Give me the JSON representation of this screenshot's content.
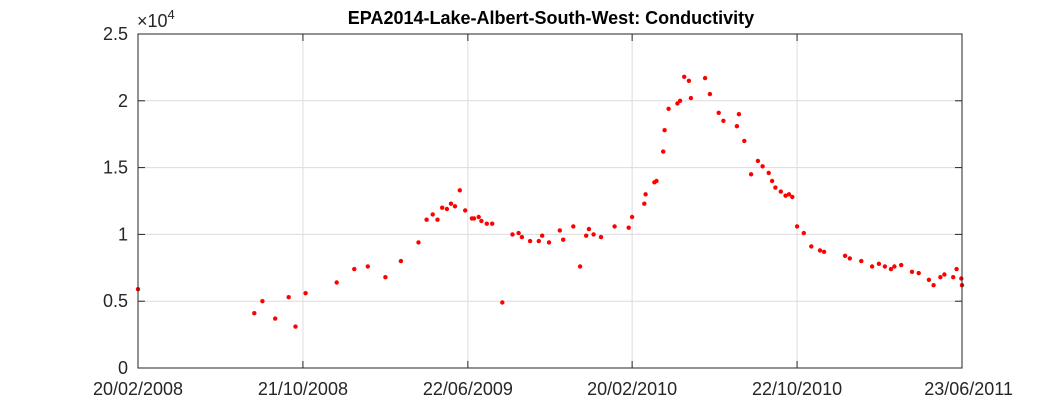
{
  "chart_data": {
    "type": "scatter",
    "title": "EPA2014-Lake-Albert-South-West: Conductivity",
    "xlabel": "",
    "ylabel": "",
    "exponent_label": "×10",
    "exponent_power": "4",
    "x_ticks": [
      "20/02/2008",
      "21/10/2008",
      "22/06/2009",
      "20/02/2010",
      "22/10/2010",
      "23/06/2011"
    ],
    "x_range": [
      "20/02/2008",
      "23/06/2011"
    ],
    "y_ticks": [
      "0",
      "0.5",
      "1",
      "1.5",
      "2",
      "2.5"
    ],
    "y_tick_values": [
      0,
      5000,
      10000,
      15000,
      20000,
      25000
    ],
    "ylim": [
      0,
      25000
    ],
    "grid": true,
    "marker_color": "#ff0000",
    "series": [
      {
        "x": [
          "2008-02-20",
          "2008-08-10",
          "2008-08-22",
          "2008-09-10",
          "2008-09-30",
          "2008-10-10",
          "2008-10-25",
          "2008-12-10",
          "2009-01-05",
          "2009-01-25",
          "2009-02-20",
          "2009-03-15",
          "2009-04-10",
          "2009-04-22",
          "2009-05-01",
          "2009-05-08",
          "2009-05-15",
          "2009-05-22",
          "2009-05-28",
          "2009-06-03",
          "2009-06-10",
          "2009-06-18",
          "2009-06-28",
          "2009-07-01",
          "2009-07-08",
          "2009-07-12",
          "2009-07-20",
          "2009-07-28",
          "2009-08-12",
          "2009-08-27",
          "2009-09-05",
          "2009-09-10",
          "2009-09-22",
          "2009-10-05",
          "2009-10-10",
          "2009-10-20",
          "2009-11-05",
          "2009-11-10",
          "2009-11-25",
          "2009-12-05",
          "2009-12-14",
          "2009-12-18",
          "2009-12-25",
          "2010-01-05",
          "2010-01-25",
          "2010-02-15",
          "2010-02-20",
          "2010-03-10",
          "2010-03-12",
          "2010-03-25",
          "2010-03-28",
          "2010-04-07",
          "2010-04-09",
          "2010-04-15",
          "2010-04-28",
          "2010-05-02",
          "2010-05-08",
          "2010-05-15",
          "2010-05-18",
          "2010-06-08",
          "2010-06-15",
          "2010-06-28",
          "2010-07-05",
          "2010-07-25",
          "2010-07-28",
          "2010-08-05",
          "2010-08-15",
          "2010-08-25",
          "2010-09-01",
          "2010-09-10",
          "2010-09-15",
          "2010-09-20",
          "2010-09-28",
          "2010-10-05",
          "2010-10-10",
          "2010-10-15",
          "2010-10-22",
          "2010-11-01",
          "2010-11-12",
          "2010-11-25",
          "2010-12-01",
          "2011-01-01",
          "2011-01-08",
          "2011-01-25",
          "2011-02-10",
          "2011-02-20",
          "2011-03-01",
          "2011-03-10",
          "2011-03-15",
          "2011-03-25",
          "2011-04-10",
          "2011-04-20",
          "2011-05-05",
          "2011-05-12",
          "2011-05-22",
          "2011-05-28",
          "2011-06-10",
          "2011-06-15",
          "2011-06-22",
          "2011-06-23"
        ],
        "y": [
          5900,
          4100,
          5000,
          3700,
          5300,
          3100,
          5600,
          6400,
          7400,
          7600,
          6800,
          8000,
          9400,
          11100,
          11500,
          11100,
          12000,
          11900,
          12300,
          12100,
          13300,
          11800,
          11200,
          11200,
          11300,
          11000,
          10800,
          10800,
          4900,
          10000,
          10100,
          9800,
          9500,
          9500,
          9900,
          9400,
          10300,
          9600,
          10600,
          7600,
          9900,
          10400,
          10000,
          9800,
          10600,
          10500,
          11300,
          12300,
          13000,
          13900,
          14000,
          16200,
          17800,
          19400,
          19800,
          20000,
          21800,
          21500,
          20200,
          21700,
          20500,
          19100,
          18500,
          18100,
          19000,
          17000,
          14500,
          15500,
          15100,
          14600,
          14000,
          13500,
          13200,
          12900,
          13000,
          12800,
          10600,
          10100,
          9100,
          8800,
          8700,
          8400,
          8200,
          8000,
          7600,
          7800,
          7600,
          7400,
          7600,
          7700,
          7200,
          7100,
          6600,
          6200,
          6800,
          7000,
          6800,
          7400,
          6700,
          6200
        ],
        "y_note": ""
      }
    ]
  }
}
